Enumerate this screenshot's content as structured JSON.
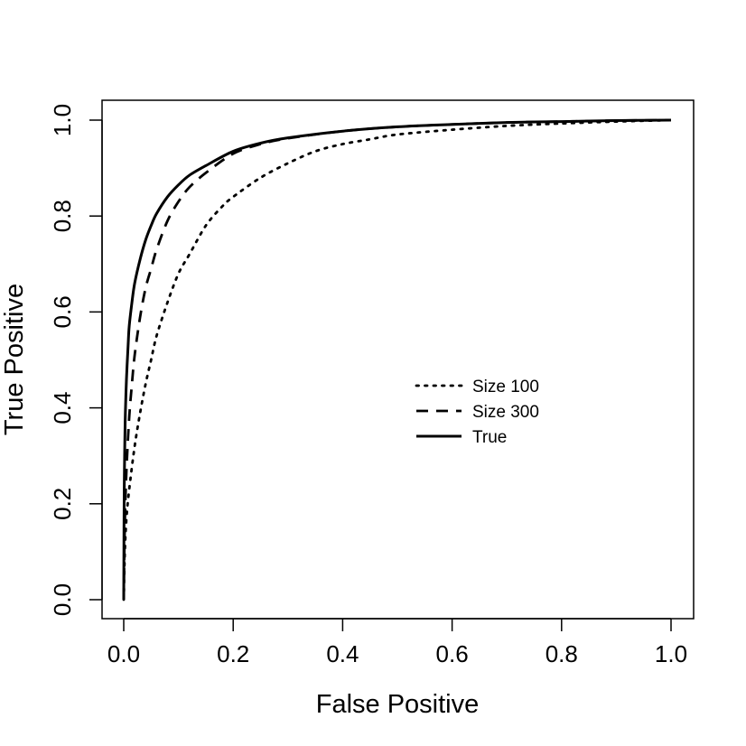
{
  "chart_data": {
    "type": "line",
    "title": "",
    "xlabel": "False Positive",
    "ylabel": "True Positive",
    "xlim": [
      0.0,
      1.0
    ],
    "ylim": [
      0.0,
      1.0
    ],
    "grid": false,
    "legend_position": "center-right",
    "x_ticks": [
      "0.0",
      "0.2",
      "0.4",
      "0.6",
      "0.8",
      "1.0"
    ],
    "y_ticks": [
      "0.0",
      "0.2",
      "0.4",
      "0.6",
      "0.8",
      "1.0"
    ],
    "series": [
      {
        "name": "Size 100",
        "style": "dotted",
        "x": [
          0.0,
          0.002,
          0.005,
          0.01,
          0.02,
          0.03,
          0.04,
          0.05,
          0.06,
          0.08,
          0.1,
          0.12,
          0.15,
          0.18,
          0.2,
          0.25,
          0.3,
          0.35,
          0.4,
          0.45,
          0.5,
          0.6,
          0.7,
          0.8,
          0.9,
          1.0
        ],
        "y": [
          0.0,
          0.1,
          0.17,
          0.23,
          0.32,
          0.39,
          0.45,
          0.5,
          0.55,
          0.62,
          0.68,
          0.72,
          0.78,
          0.82,
          0.84,
          0.88,
          0.91,
          0.935,
          0.95,
          0.96,
          0.97,
          0.98,
          0.988,
          0.993,
          0.997,
          1.0
        ]
      },
      {
        "name": "Size 300",
        "style": "dashed",
        "x": [
          0.0,
          0.002,
          0.005,
          0.01,
          0.015,
          0.02,
          0.03,
          0.04,
          0.05,
          0.06,
          0.08,
          0.1,
          0.12,
          0.15,
          0.2,
          0.25,
          0.3,
          0.4,
          0.5,
          0.6,
          0.7,
          0.8,
          0.9,
          1.0
        ],
        "y": [
          0.0,
          0.16,
          0.27,
          0.38,
          0.45,
          0.51,
          0.59,
          0.65,
          0.69,
          0.73,
          0.79,
          0.83,
          0.86,
          0.89,
          0.93,
          0.95,
          0.962,
          0.977,
          0.986,
          0.991,
          0.995,
          0.997,
          0.999,
          1.0
        ]
      },
      {
        "name": "True",
        "style": "solid",
        "x": [
          0.0,
          0.0005,
          0.001,
          0.002,
          0.003,
          0.005,
          0.008,
          0.01,
          0.015,
          0.02,
          0.03,
          0.04,
          0.05,
          0.06,
          0.08,
          0.1,
          0.12,
          0.15,
          0.2,
          0.25,
          0.3,
          0.4,
          0.5,
          0.6,
          0.7,
          0.8,
          0.9,
          1.0
        ],
        "y": [
          0.0,
          0.15,
          0.24,
          0.33,
          0.39,
          0.46,
          0.53,
          0.57,
          0.62,
          0.66,
          0.71,
          0.75,
          0.78,
          0.805,
          0.84,
          0.865,
          0.885,
          0.905,
          0.935,
          0.952,
          0.963,
          0.977,
          0.986,
          0.991,
          0.995,
          0.997,
          0.999,
          1.0
        ]
      }
    ]
  }
}
